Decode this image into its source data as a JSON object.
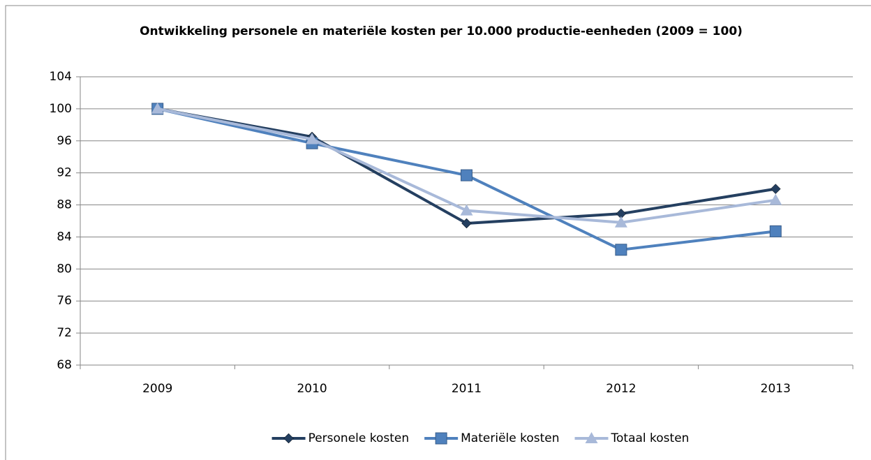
{
  "chart_data": {
    "type": "line",
    "title": "Ontwikkeling personele en materiële kosten per 10.000 productie-eenheden (2009 = 100)",
    "categories": [
      "2009",
      "2010",
      "2011",
      "2012",
      "2013"
    ],
    "series": [
      {
        "name": "Personele kosten",
        "color": "#243f60",
        "marker": "diamond",
        "values": [
          100,
          96.5,
          85.7,
          86.9,
          90.0
        ]
      },
      {
        "name": "Materiële kosten",
        "color": "#4f81bd",
        "marker": "square",
        "values": [
          100,
          95.7,
          91.7,
          82.4,
          84.7
        ]
      },
      {
        "name": "Totaal kosten",
        "color": "#a8b9d9",
        "marker": "triangle",
        "values": [
          100,
          96.2,
          87.3,
          85.8,
          88.6
        ]
      }
    ],
    "ylim": [
      68,
      104
    ],
    "yticks": [
      68,
      72,
      76,
      80,
      84,
      88,
      92,
      96,
      100,
      104
    ],
    "grid": true,
    "legend": "bottom"
  }
}
